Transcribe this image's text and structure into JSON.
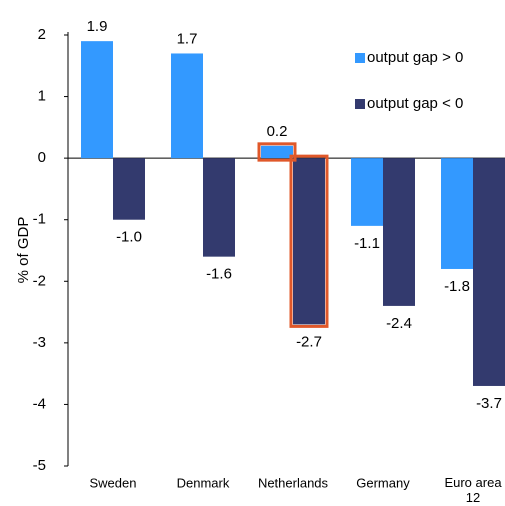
{
  "chart_data": {
    "type": "bar",
    "y_label": "% of GDP",
    "categories": [
      "Sweden",
      "Denmark",
      "Netherlands",
      "Germany",
      "Euro area 12"
    ],
    "series": [
      {
        "name": "output gap > 0",
        "color": "#3399ff",
        "values": [
          1.9,
          1.7,
          0.2,
          -1.1,
          -1.8
        ],
        "value_labels": [
          "1.9",
          "1.7",
          "0.2",
          "-1.1",
          "-1.8"
        ]
      },
      {
        "name": "output gap < 0",
        "color": "#333a6e",
        "values": [
          -1.0,
          -1.6,
          -2.7,
          -2.4,
          -3.7
        ],
        "value_labels": [
          "-1.0",
          "-1.6",
          "-2.7",
          "-2.4",
          "-3.7"
        ]
      }
    ],
    "ylim": [
      -5,
      2
    ],
    "yticks": [
      -5,
      -4,
      -3,
      -2,
      -1,
      0,
      1,
      2
    ],
    "grid": false,
    "legend": "top-right"
  }
}
